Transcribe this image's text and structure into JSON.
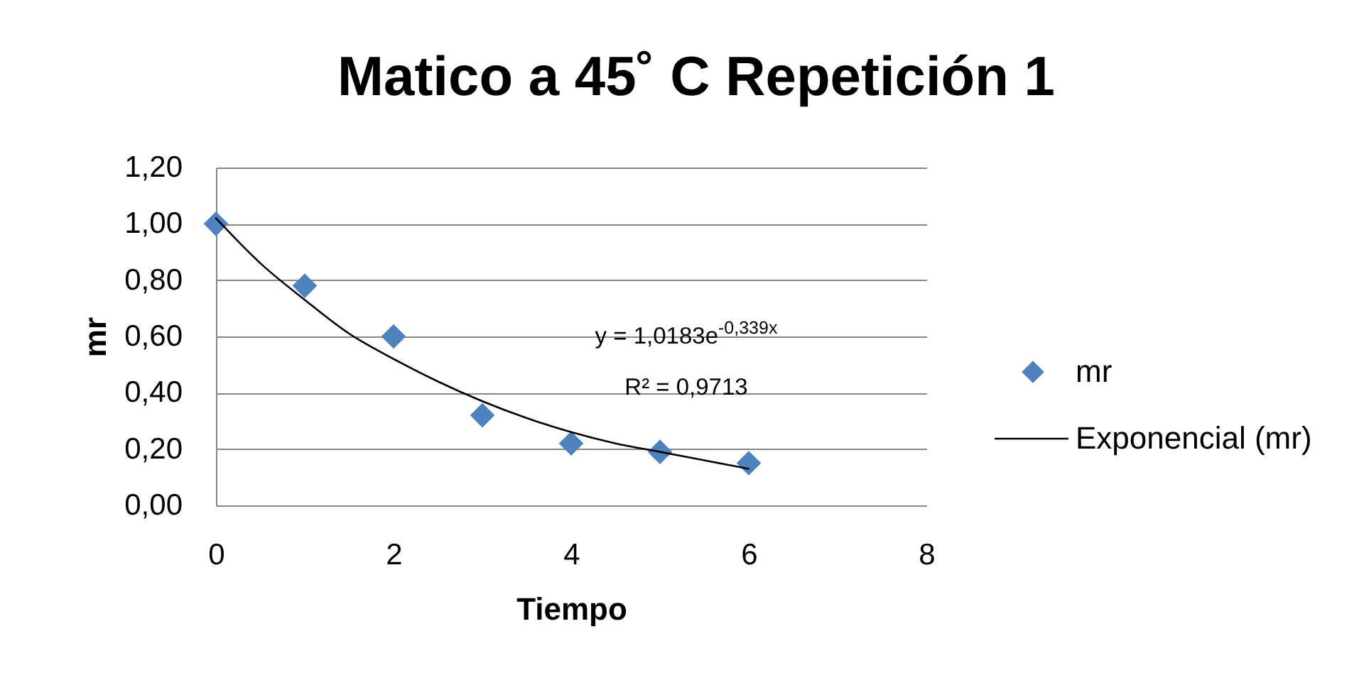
{
  "chart_data": {
    "type": "scatter",
    "title": "Matico a 45˚ C Repetición 1",
    "xlabel": "Tiempo",
    "ylabel": "mr",
    "x": [
      0,
      1,
      2,
      3,
      4,
      5,
      6
    ],
    "series": [
      {
        "name": "mr",
        "color": "#4f81bd",
        "marker": "diamond",
        "values": [
          1.0,
          0.78,
          0.6,
          0.32,
          0.22,
          0.19,
          0.15
        ]
      },
      {
        "name": "Exponencial (mr)",
        "type": "line",
        "color": "#000000",
        "marker": "none",
        "x": [
          0,
          0.5,
          1,
          1.5,
          2,
          2.5,
          3,
          3.5,
          4,
          4.5,
          5,
          5.5,
          6
        ],
        "values": [
          1.02,
          0.86,
          0.73,
          0.61,
          0.52,
          0.44,
          0.37,
          0.31,
          0.26,
          0.22,
          0.19,
          0.16,
          0.13
        ]
      }
    ],
    "xlim": [
      0,
      8
    ],
    "xticks": [
      0,
      2,
      4,
      6,
      8
    ],
    "ylim": [
      0,
      1.2
    ],
    "yticks": [
      {
        "value": 0,
        "label": "0,00"
      },
      {
        "value": 0.2,
        "label": "0,20"
      },
      {
        "value": 0.4,
        "label": "0,40"
      },
      {
        "value": 0.6,
        "label": "0,60"
      },
      {
        "value": 0.8,
        "label": "0,80"
      },
      {
        "value": 1,
        "label": "1,00"
      },
      {
        "value": 1.2,
        "label": "1,20"
      }
    ],
    "grid": "y",
    "legend": "right",
    "annotations": [
      "y = 1,0183e$^{-0,339x}$",
      "R² = 0,9713"
    ]
  }
}
